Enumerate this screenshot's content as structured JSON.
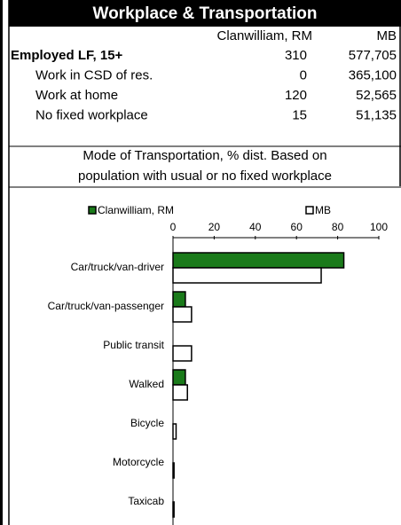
{
  "header": {
    "title": "Workplace & Transportation"
  },
  "table": {
    "columns": [
      "Clanwilliam, RM",
      "MB"
    ],
    "rows": [
      [
        "Employed LF, 15+",
        "310",
        "577,705"
      ],
      [
        "Work in CSD of res.",
        "0",
        "365,100"
      ],
      [
        "Work at home",
        "120",
        "52,565"
      ],
      [
        "No fixed workplace",
        "15",
        "51,135"
      ]
    ]
  },
  "note": [
    "Mode of Transportation, % dist. Based on",
    "population with usual or no fixed workplace"
  ],
  "chart_data": {
    "type": "bar",
    "orientation": "horizontal",
    "categories": [
      "Car/truck/van-driver",
      "Car/truck/van-passenger",
      "Public transit",
      "Walked",
      "Bicycle",
      "Motorcycle",
      "Taxicab"
    ],
    "series": [
      {
        "name": "Clanwilliam, RM",
        "color": "#1a7a1a",
        "values": [
          83,
          6,
          0,
          6,
          0,
          0,
          0
        ]
      },
      {
        "name": "MB",
        "color": "#ffffff",
        "values": [
          72,
          9,
          9,
          7,
          1.5,
          0.5,
          0.5
        ]
      }
    ],
    "xlim": [
      0,
      100
    ],
    "xticks": [
      0,
      20,
      40,
      60,
      80,
      100
    ]
  }
}
